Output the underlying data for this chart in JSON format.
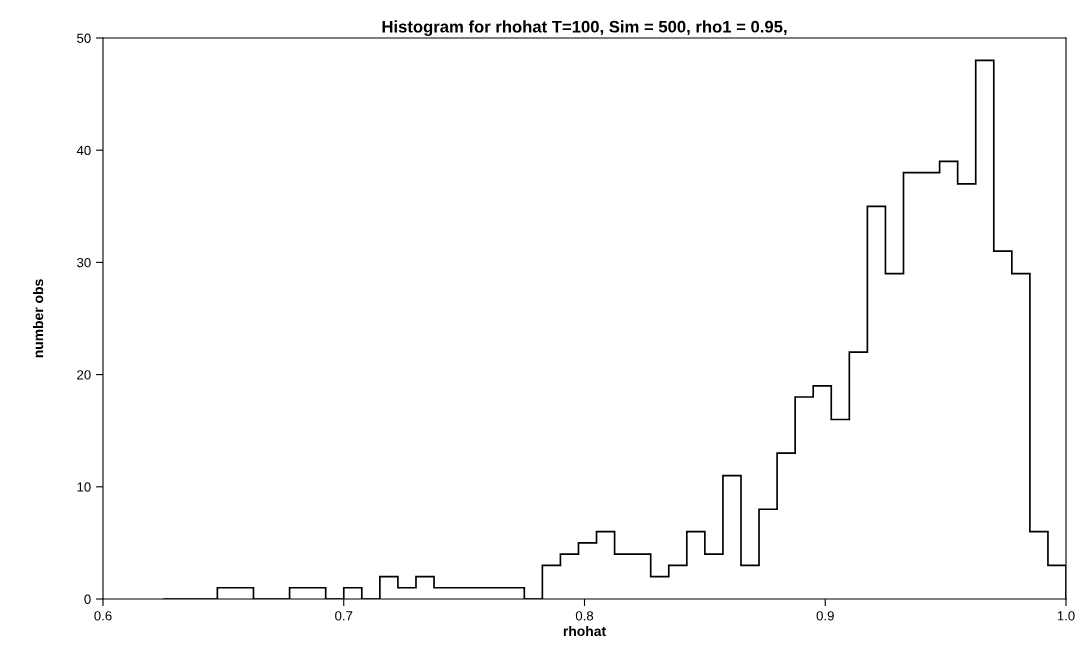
{
  "chart_data": {
    "type": "histogram",
    "title": "Histogram for rhohat T=100, Sim = 500, rho1 = 0.95,",
    "xlabel": "rhohat",
    "ylabel": "number obs",
    "bins": [
      0.625,
      0.6325,
      0.64,
      0.6475,
      0.655,
      0.6625,
      0.67,
      0.6775,
      0.685,
      0.6925,
      0.7,
      0.7075,
      0.715,
      0.7225,
      0.73,
      0.7375,
      0.745,
      0.7525,
      0.76,
      0.7675,
      0.775,
      0.7825,
      0.79,
      0.7975,
      0.805,
      0.8125,
      0.82,
      0.8275,
      0.835,
      0.8425,
      0.85,
      0.8575,
      0.865,
      0.8725,
      0.88,
      0.8875,
      0.895,
      0.9025,
      0.91,
      0.9175,
      0.925,
      0.9325,
      0.94,
      0.9475,
      0.955,
      0.9625,
      0.97,
      0.9775,
      0.985,
      0.9925,
      1.0
    ],
    "values": [
      0,
      0,
      0,
      1,
      1,
      0,
      0,
      1,
      1,
      0,
      1,
      0,
      2,
      1,
      2,
      1,
      1,
      1,
      1,
      1,
      0,
      3,
      4,
      5,
      6,
      4,
      4,
      2,
      3,
      6,
      4,
      11,
      3,
      8,
      13,
      18,
      19,
      16,
      22,
      35,
      29,
      38,
      38,
      39,
      37,
      48,
      31,
      29,
      6,
      3
    ],
    "color": "#000000",
    "xlim": [
      0.6,
      1.0
    ],
    "xticks": [
      0.6,
      0.7,
      0.8,
      0.9,
      {
        "value": 1,
        "label": "1.0"
      }
    ],
    "ylim": [
      0,
      50
    ],
    "yticks": [
      0,
      10,
      20,
      30,
      40,
      50
    ],
    "grid": false,
    "legend": false
  }
}
